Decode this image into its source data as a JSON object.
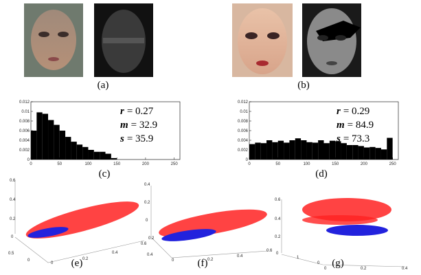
{
  "panels": {
    "a": "(a)",
    "b": "(b)",
    "e": "(e)",
    "f": "(f)",
    "g": "(g)"
  },
  "chart_data": [
    {
      "type": "histogram",
      "label": "(c)",
      "annotations": [
        {
          "symbol": "r",
          "text": "= 0.27"
        },
        {
          "symbol": "m",
          "text": "= 32.9"
        },
        {
          "symbol": "s",
          "text": "= 35.9"
        }
      ],
      "bins": [
        0,
        10,
        20,
        30,
        40,
        50,
        60,
        70,
        80,
        90,
        100,
        110,
        120,
        130,
        140,
        150,
        160,
        170,
        180,
        190,
        200,
        210,
        220,
        230,
        240,
        250
      ],
      "values": [
        0.006,
        0.0098,
        0.0095,
        0.0082,
        0.0072,
        0.006,
        0.0047,
        0.0037,
        0.0031,
        0.0026,
        0.002,
        0.0016,
        0.0016,
        0.0012,
        0.0003,
        0,
        0,
        0,
        0,
        0,
        0,
        0,
        0,
        0,
        0
      ],
      "color": "#000000",
      "xlim": [
        0,
        260
      ],
      "ylim": [
        0,
        0.012
      ],
      "xticks": [
        0,
        50,
        100,
        150,
        200,
        250
      ],
      "yticks": [
        0,
        0.002,
        0.004,
        0.006,
        0.008,
        0.01,
        0.012
      ]
    },
    {
      "type": "histogram",
      "label": "(d)",
      "annotations": [
        {
          "symbol": "r",
          "text": "= 0.29"
        },
        {
          "symbol": "m",
          "text": "= 84.9"
        },
        {
          "symbol": "s",
          "text": "= 73.3"
        }
      ],
      "bins": [
        0,
        10,
        20,
        30,
        40,
        50,
        60,
        70,
        80,
        90,
        100,
        110,
        120,
        130,
        140,
        150,
        160,
        170,
        180,
        190,
        200,
        210,
        220,
        230,
        240,
        250
      ],
      "values": [
        0.0032,
        0.0035,
        0.0034,
        0.004,
        0.0036,
        0.0039,
        0.0035,
        0.004,
        0.0044,
        0.004,
        0.0036,
        0.0035,
        0.004,
        0.0034,
        0.0039,
        0.0038,
        0.0034,
        0.003,
        0.003,
        0.0028,
        0.0025,
        0.0026,
        0.0024,
        0.0021,
        0.0045
      ],
      "color": "#000000",
      "xlim": [
        0,
        260
      ],
      "ylim": [
        0,
        0.012
      ],
      "xticks": [
        0,
        50,
        100,
        150,
        200,
        250
      ],
      "yticks": [
        0,
        0.002,
        0.004,
        0.006,
        0.008,
        0.01,
        0.012
      ]
    }
  ],
  "scatter_ticks": [
    [
      "0.6",
      "0.4",
      "0.2",
      "0",
      "0.5",
      "0",
      "0",
      "0.2",
      "0.4",
      "0.6"
    ],
    [
      "0.4",
      "0.2",
      "0",
      "0.2",
      "0.4",
      "0",
      "0.2",
      "0.4",
      "0.6"
    ],
    [
      "0.6",
      "0.4",
      "0.2",
      "0",
      "1",
      "0",
      "0",
      "0.2",
      "0.4"
    ]
  ]
}
